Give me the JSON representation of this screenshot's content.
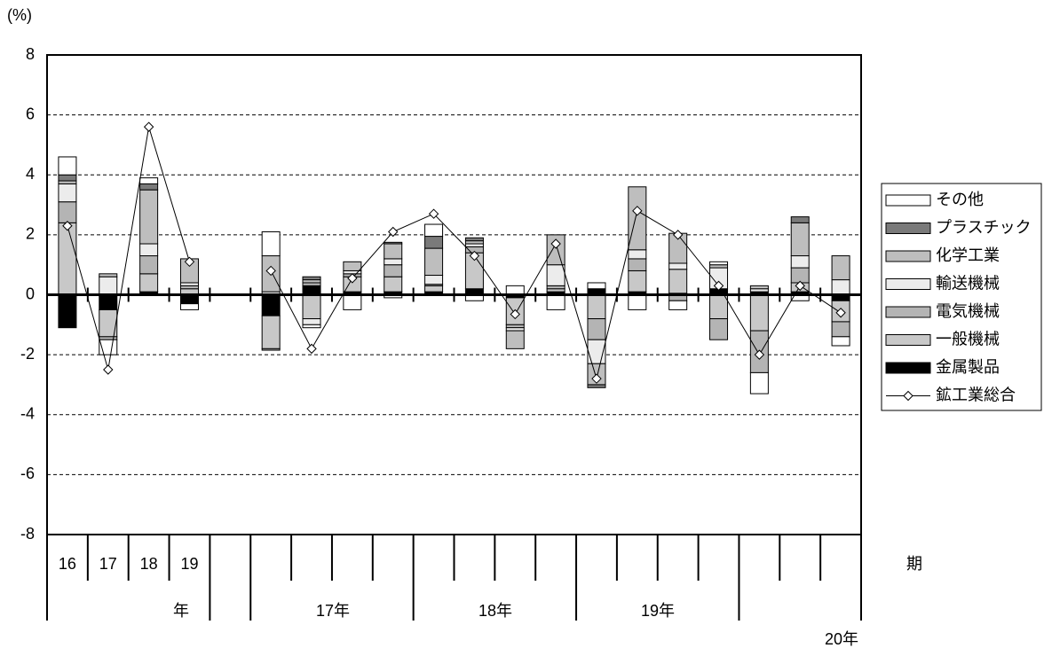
{
  "chart_data": {
    "type": "stacked_bar_line",
    "y_label": "(%)",
    "x_unit": "期",
    "categories": [
      "16",
      "17",
      "18",
      "19",
      null,
      null,
      null,
      null,
      null,
      null,
      null,
      null,
      null,
      null,
      null,
      null,
      null,
      null,
      null,
      null
    ],
    "x_groups": [
      "年",
      "17年",
      "18年",
      "19年",
      "20年"
    ],
    "ylim": [
      -8,
      8
    ],
    "yticks": [
      8,
      6,
      4,
      2,
      0,
      -2,
      -4,
      -6,
      -8
    ],
    "grid": true,
    "series": [
      {
        "name": "金属製品",
        "color": "#000000",
        "values": [
          -1.1,
          -0.5,
          0.1,
          -0.3,
          null,
          -0.7,
          0.3,
          0.1,
          0.1,
          0.1,
          0.2,
          -0.1,
          0.1,
          0.2,
          0.1,
          0.05,
          0.2,
          0.1,
          0.1,
          -0.2
        ]
      },
      {
        "name": "一般機械",
        "color": "#c8c8c8",
        "values": [
          2.4,
          -0.9,
          0.6,
          0.2,
          null,
          -1.1,
          -0.8,
          0.5,
          0.5,
          0.2,
          1.2,
          -0.9,
          0.1,
          -0.8,
          0.7,
          0.8,
          -0.8,
          -1.2,
          0.3,
          -0.7
        ]
      },
      {
        "name": "電気機械",
        "color": "#b4b4b4",
        "values": [
          0.7,
          -0.1,
          0.6,
          0.1,
          null,
          -0.05,
          0.1,
          0.1,
          0.4,
          0.05,
          0.2,
          -0.1,
          0.1,
          -0.7,
          0.4,
          -0.2,
          -0.7,
          -1.4,
          0.5,
          -0.5
        ]
      },
      {
        "name": "輸送機械",
        "color": "#ececec",
        "values": [
          0.6,
          0.6,
          0.4,
          0.1,
          null,
          0.1,
          -0.2,
          0.1,
          0.2,
          0.3,
          0.1,
          -0.1,
          0.7,
          -0.8,
          0.3,
          0.2,
          0.7,
          0.1,
          0.4,
          0.5
        ]
      },
      {
        "name": "化学工業",
        "color": "#bebebe",
        "values": [
          0.1,
          0.1,
          1.8,
          0.8,
          null,
          1.2,
          0.1,
          0.3,
          0.5,
          0.9,
          0.1,
          -0.6,
          1.0,
          -0.7,
          2.1,
          1.0,
          0.1,
          0.1,
          1.1,
          0.8
        ]
      },
      {
        "name": "プラスチック",
        "color": "#7a7a7a",
        "values": [
          0.2,
          0,
          0.2,
          0,
          null,
          0,
          0.1,
          0,
          0.05,
          0.4,
          0.1,
          0,
          0,
          -0.1,
          0,
          0,
          0,
          0,
          0.2,
          0
        ]
      },
      {
        "name": "その他",
        "color": "#ffffff",
        "values": [
          0.6,
          -0.5,
          0.2,
          -0.2,
          null,
          0.8,
          -0.1,
          -0.5,
          -0.1,
          0.4,
          -0.2,
          0.3,
          -0.5,
          0.2,
          -0.5,
          -0.3,
          0.1,
          -0.7,
          -0.2,
          -0.3
        ]
      }
    ],
    "line": {
      "name": "鉱工業総合",
      "color": "#000000",
      "values": [
        2.3,
        -2.5,
        5.6,
        1.1,
        null,
        0.8,
        -1.8,
        0.55,
        2.1,
        2.7,
        1.3,
        -0.65,
        1.7,
        -2.8,
        2.8,
        2.0,
        0.3,
        -2.0,
        0.3,
        -0.6
      ]
    }
  }
}
